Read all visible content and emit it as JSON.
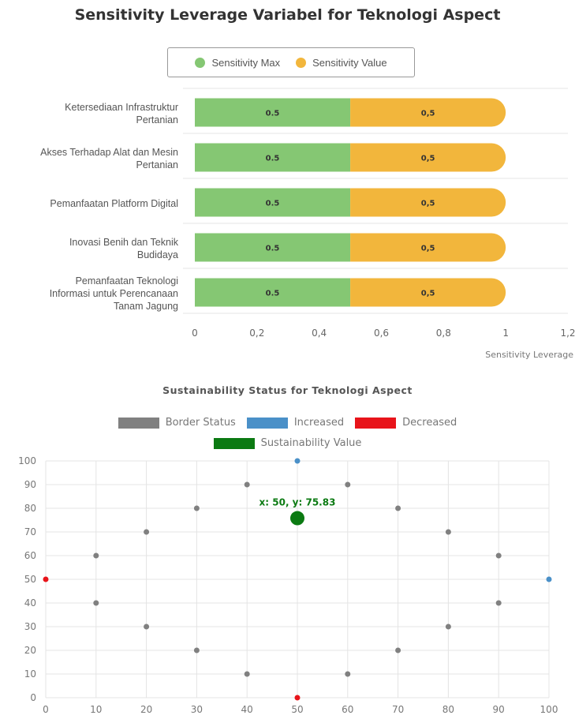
{
  "chart_data": [
    {
      "type": "bar",
      "orientation": "horizontal",
      "stacked": true,
      "title": "Sensitivity Leverage Variabel for Teknologi Aspect",
      "xlabel": "Sensitivity Leverage",
      "xlim": [
        0,
        1.2
      ],
      "x_ticks": [
        "0",
        "0,2",
        "0,4",
        "0,6",
        "0,8",
        "1",
        "1,2"
      ],
      "legend_position": "top",
      "categories": [
        [
          "Ketersediaan Infrastruktur",
          "Pertanian"
        ],
        [
          "Akses Terhadap Alat dan Mesin",
          "Pertanian"
        ],
        [
          "Pemanfaatan Platform Digital"
        ],
        [
          "Inovasi Benih dan Teknik",
          "Budidaya"
        ],
        [
          "Pemanfaatan Teknologi",
          "Informasi untuk Perencanaan",
          "Tanam Jagung"
        ]
      ],
      "series": [
        {
          "name": "Sensitivity Max",
          "color": "#85c773",
          "values": [
            0.5,
            0.5,
            0.5,
            0.5,
            0.5
          ],
          "labels": [
            "0.5",
            "0.5",
            "0.5",
            "0.5",
            "0.5"
          ]
        },
        {
          "name": "Sensitivity Value",
          "color": "#f2b63c",
          "values": [
            0.5,
            0.5,
            0.5,
            0.5,
            0.5
          ],
          "labels": [
            "0,5",
            "0,5",
            "0,5",
            "0,5",
            "0,5"
          ]
        }
      ]
    },
    {
      "type": "scatter",
      "title": "Sustainability Status for Teknologi Aspect",
      "xlim": [
        0,
        100
      ],
      "ylim": [
        0,
        100
      ],
      "x_ticks": [
        0,
        10,
        20,
        30,
        40,
        50,
        60,
        70,
        80,
        90,
        100
      ],
      "y_ticks": [
        0,
        10,
        20,
        30,
        40,
        50,
        60,
        70,
        80,
        90,
        100
      ],
      "grid": true,
      "legend_position": "top",
      "series": [
        {
          "name": "Border Status",
          "color": "#808080",
          "points": [
            [
              10,
              60
            ],
            [
              20,
              70
            ],
            [
              30,
              80
            ],
            [
              40,
              90
            ],
            [
              60,
              90
            ],
            [
              70,
              80
            ],
            [
              80,
              70
            ],
            [
              90,
              60
            ],
            [
              10,
              40
            ],
            [
              20,
              30
            ],
            [
              30,
              20
            ],
            [
              40,
              10
            ],
            [
              60,
              10
            ],
            [
              70,
              20
            ],
            [
              80,
              30
            ],
            [
              90,
              40
            ]
          ]
        },
        {
          "name": "Increased",
          "color": "#4a90c8",
          "points": [
            [
              50,
              100
            ],
            [
              100,
              50
            ]
          ]
        },
        {
          "name": "Decreased",
          "color": "#e8141a",
          "points": [
            [
              0,
              50
            ],
            [
              50,
              0
            ]
          ]
        },
        {
          "name": "Sustainability Value",
          "color": "#0b7a12",
          "points": [
            [
              50,
              75.83
            ]
          ]
        }
      ],
      "annotation": "x: 50, y: 75.83"
    }
  ]
}
